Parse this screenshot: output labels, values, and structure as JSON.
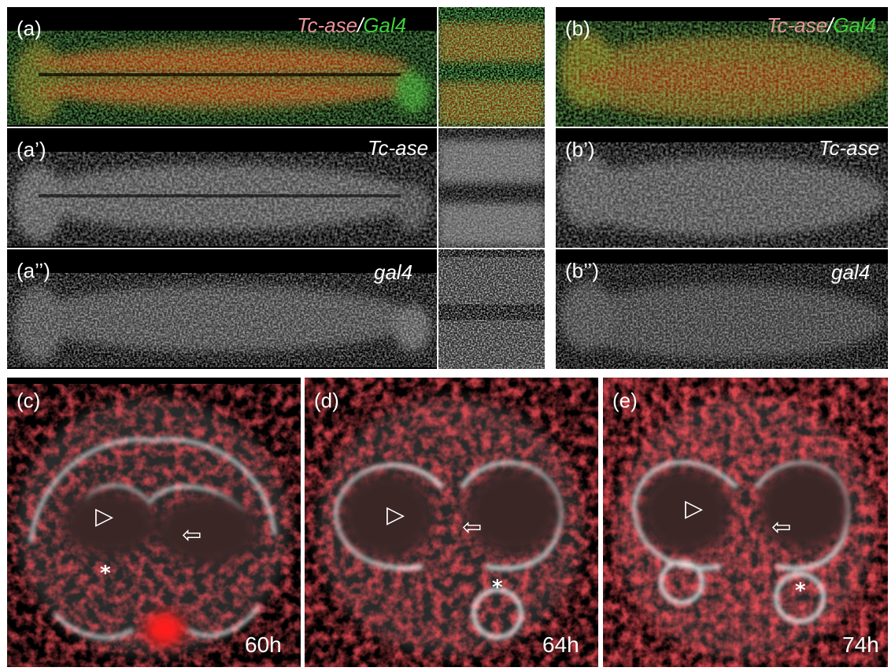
{
  "panel_a": {
    "label": "(a)",
    "title_red": "Tc-ase",
    "title_sep": "/",
    "title_green": "Gal4"
  },
  "panel_a1": {
    "label": "(a’)",
    "title": "Tc-ase"
  },
  "panel_a2": {
    "label": "(a’’)",
    "title": "gal4"
  },
  "panel_b": {
    "label": "(b)",
    "title_red": "Tc-ase",
    "title_sep": "/",
    "title_green": "Gal4"
  },
  "panel_b1": {
    "label": "(b’)",
    "title": "Tc-ase"
  },
  "panel_b2": {
    "label": "(b’’)",
    "title": "gal4"
  },
  "panel_c": {
    "label": "(c)",
    "time": "60h"
  },
  "panel_d": {
    "label": "(d)",
    "time": "64h"
  },
  "panel_e": {
    "label": "(e)",
    "time": "74h"
  },
  "colors": {
    "tc_ase": "#e8949a",
    "gal4": "#3fd03a",
    "signal_red": "#e0141a",
    "background": "#000000"
  },
  "markers": {
    "arrowhead": "▷",
    "arrow": "⇦",
    "asterisk": "*"
  }
}
